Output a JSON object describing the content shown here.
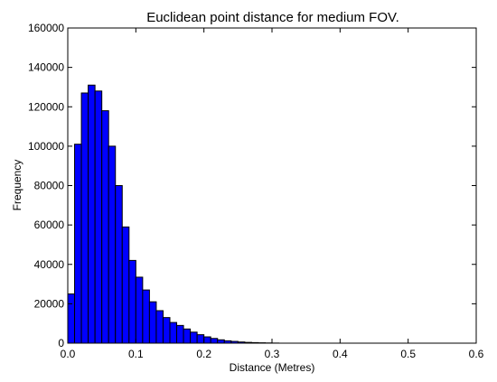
{
  "chart_data": {
    "type": "bar",
    "title": "Euclidean point distance for medium FOV.",
    "xlabel": "Distance (Metres)",
    "ylabel": "Frequency",
    "xlim": [
      0.0,
      0.6
    ],
    "ylim": [
      0,
      160000
    ],
    "x_ticks": [
      "0.0",
      "0.1",
      "0.2",
      "0.3",
      "0.4",
      "0.5",
      "0.6"
    ],
    "y_ticks": [
      "0",
      "20000",
      "40000",
      "60000",
      "80000",
      "100000",
      "120000",
      "140000",
      "160000"
    ],
    "grid": false,
    "bar_color": "#0000ff",
    "bin_width": 0.01,
    "bins": [
      {
        "x0": 0.0,
        "value": 25000
      },
      {
        "x0": 0.01,
        "value": 101000
      },
      {
        "x0": 0.02,
        "value": 127000
      },
      {
        "x0": 0.03,
        "value": 131000
      },
      {
        "x0": 0.04,
        "value": 128000
      },
      {
        "x0": 0.05,
        "value": 118000
      },
      {
        "x0": 0.06,
        "value": 100000
      },
      {
        "x0": 0.07,
        "value": 80000
      },
      {
        "x0": 0.08,
        "value": 59000
      },
      {
        "x0": 0.09,
        "value": 42000
      },
      {
        "x0": 0.1,
        "value": 33500
      },
      {
        "x0": 0.11,
        "value": 27000
      },
      {
        "x0": 0.12,
        "value": 21000
      },
      {
        "x0": 0.13,
        "value": 16500
      },
      {
        "x0": 0.14,
        "value": 13000
      },
      {
        "x0": 0.15,
        "value": 10500
      },
      {
        "x0": 0.16,
        "value": 9000
      },
      {
        "x0": 0.17,
        "value": 7200
      },
      {
        "x0": 0.18,
        "value": 5600
      },
      {
        "x0": 0.19,
        "value": 4300
      },
      {
        "x0": 0.2,
        "value": 3200
      },
      {
        "x0": 0.21,
        "value": 2400
      },
      {
        "x0": 0.22,
        "value": 1700
      },
      {
        "x0": 0.23,
        "value": 1200
      },
      {
        "x0": 0.24,
        "value": 900
      },
      {
        "x0": 0.25,
        "value": 600
      },
      {
        "x0": 0.26,
        "value": 400
      },
      {
        "x0": 0.27,
        "value": 280
      },
      {
        "x0": 0.28,
        "value": 180
      },
      {
        "x0": 0.29,
        "value": 110
      },
      {
        "x0": 0.3,
        "value": 60
      }
    ]
  }
}
